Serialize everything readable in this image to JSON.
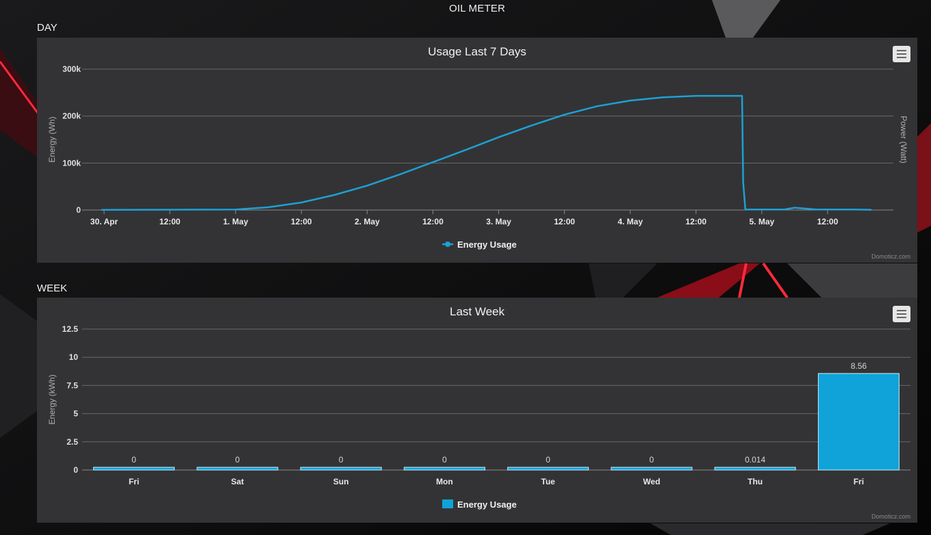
{
  "page": {
    "title": "OIL METER"
  },
  "sections": {
    "day": "DAY",
    "week": "WEEK"
  },
  "credit": "Domoticz.com",
  "colors": {
    "series": "#1ea0d5",
    "bar": "#0fa3d9",
    "panel": "#333335",
    "grid": "#6a6a6a"
  },
  "icons": {
    "menu": "hamburger-menu-icon"
  },
  "chart_data": [
    {
      "type": "line",
      "title": "Usage Last 7 Days",
      "ylabel": "Energy (Wh)",
      "ylabel_right": "Power (Watt)",
      "x_tick_labels": [
        "30. Apr",
        "12:00",
        "1. May",
        "12:00",
        "2. May",
        "12:00",
        "3. May",
        "12:00",
        "4. May",
        "12:00",
        "5. May",
        "12:00"
      ],
      "y_tick_labels": [
        "0",
        "100k",
        "200k",
        "300k"
      ],
      "ylim": [
        0,
        300000
      ],
      "grid": true,
      "legend": "bottom-center",
      "series": [
        {
          "name": "Energy Usage",
          "x_hours_from_30_Apr": [
            -0.5,
            24,
            30,
            36,
            42,
            48,
            54,
            60,
            66,
            72,
            78,
            84,
            90,
            96,
            102,
            108,
            114,
            116.4,
            116.6,
            117,
            124,
            126,
            130,
            137,
            140
          ],
          "y": [
            500,
            1000,
            6000,
            16000,
            32000,
            52000,
            76000,
            102000,
            128000,
            155000,
            180000,
            203000,
            221000,
            233000,
            240000,
            243000,
            243000,
            243000,
            60000,
            1000,
            1000,
            5000,
            1000,
            1000,
            500
          ]
        }
      ]
    },
    {
      "type": "bar",
      "title": "Last Week",
      "ylabel": "Energy (kWh)",
      "categories": [
        "Fri",
        "Sat",
        "Sun",
        "Mon",
        "Tue",
        "Wed",
        "Thu",
        "Fri"
      ],
      "y_tick_labels": [
        "0",
        "2.5",
        "5",
        "7.5",
        "10",
        "12.5"
      ],
      "ylim": [
        0,
        12.5
      ],
      "grid": true,
      "legend": "bottom-center",
      "series": [
        {
          "name": "Energy Usage",
          "values": [
            0,
            0,
            0,
            0,
            0,
            0,
            0.014,
            8.56
          ],
          "labels": [
            "0",
            "0",
            "0",
            "0",
            "0",
            "0",
            "0.014",
            "8.56"
          ]
        }
      ]
    }
  ]
}
